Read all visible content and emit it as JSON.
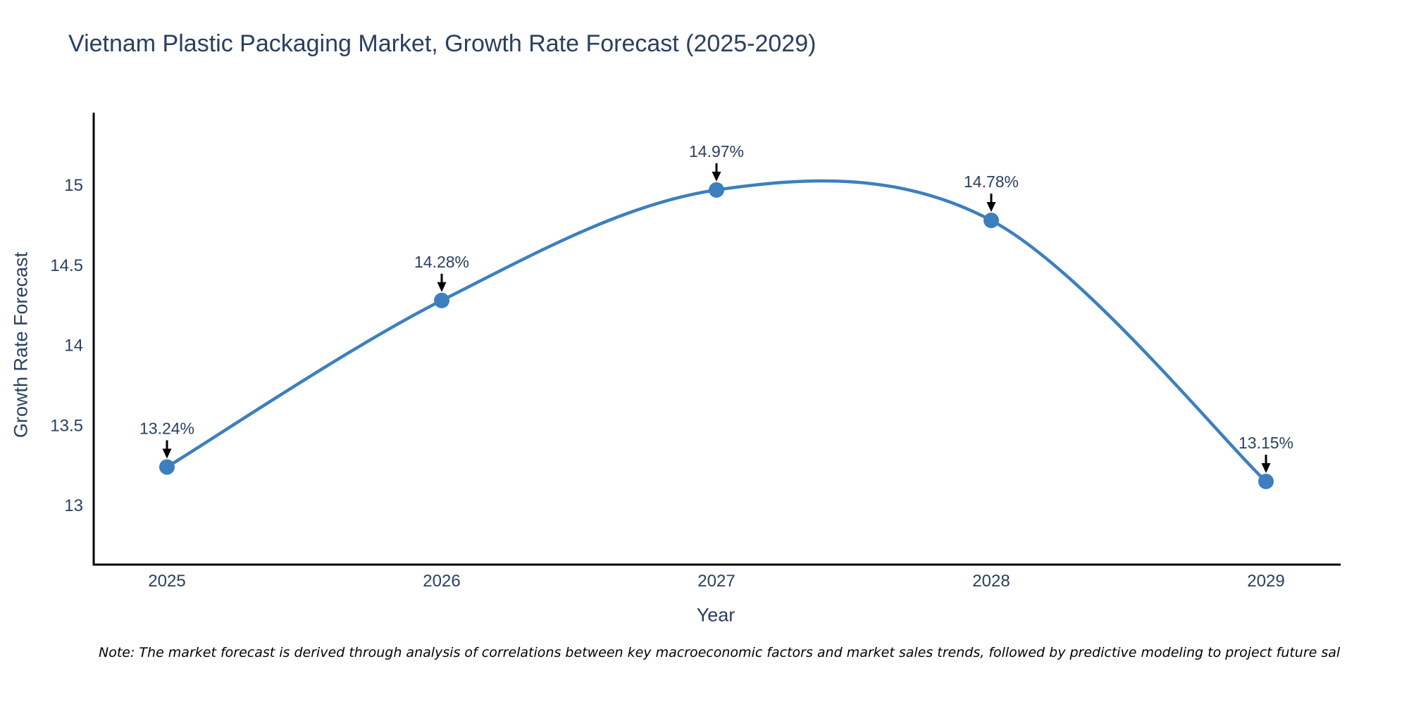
{
  "page": {
    "note": "Note: The market forecast is derived through analysis of correlations between key macroeconomic factors and market sales trends, followed by predictive modeling to project future sal"
  },
  "chart_data": {
    "type": "line",
    "title": "Vietnam Plastic Packaging Market, Growth Rate Forecast (2025-2029)",
    "xlabel": "Year",
    "ylabel": "Growth Rate Forecast",
    "categories": [
      "2025",
      "2026",
      "2027",
      "2028",
      "2029"
    ],
    "series": [
      {
        "name": "Growth Rate Forecast",
        "values": [
          13.24,
          14.28,
          14.97,
          14.78,
          13.15
        ]
      }
    ],
    "point_labels": [
      "13.24%",
      "14.28%",
      "14.97%",
      "14.78%",
      "13.15%"
    ],
    "y_ticks": [
      13,
      13.5,
      14,
      14.5,
      15
    ],
    "ylim": [
      12.6,
      15.45
    ],
    "line_shape": "spline",
    "markers": true,
    "grid": false,
    "legend_position": "none",
    "annotation_arrows": true,
    "colors": {
      "line": "#3d7fbe",
      "marker": "#3d7fbe",
      "axis_line": "#000000",
      "tick_text": "#2a3f5f",
      "annotation_text": "#2a3f5f",
      "arrow": "#000000",
      "title_text": "#2a3f5f",
      "background": "#ffffff"
    }
  }
}
